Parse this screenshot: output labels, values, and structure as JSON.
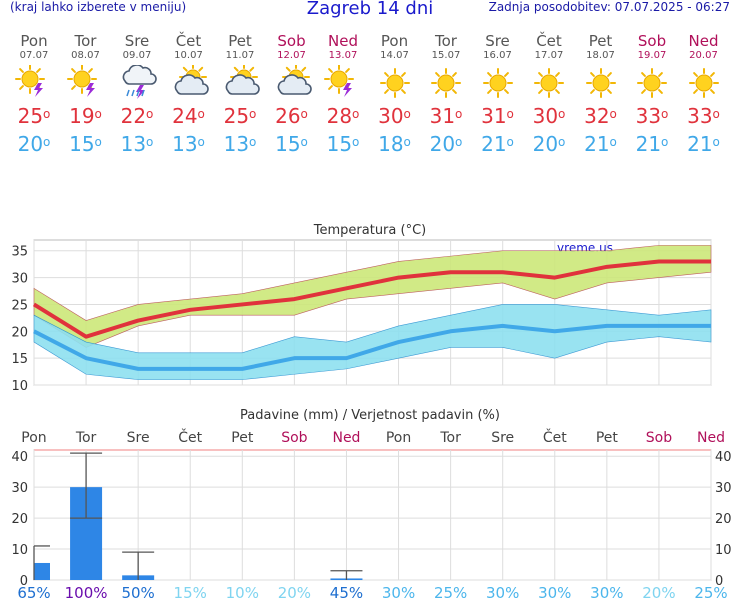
{
  "header": {
    "menu_hint": "(kraj lahko izberete v meniju)",
    "title": "Zagreb 14 dni",
    "updated": "Zadnja posodobitev: 07.07.2025 - 06:27"
  },
  "days": [
    {
      "name": "Pon",
      "date": "07.07",
      "icon": "sun-cloud-storm-icon",
      "max": "25",
      "min": "20",
      "weekend": false
    },
    {
      "name": "Tor",
      "date": "08.07",
      "icon": "sun-cloud-storm-icon",
      "max": "19",
      "min": "15",
      "weekend": false
    },
    {
      "name": "Sre",
      "date": "09.07",
      "icon": "cloud-storm-rain-icon",
      "max": "22",
      "min": "13",
      "weekend": false
    },
    {
      "name": "Čet",
      "date": "10.07",
      "icon": "sun-cloud-icon",
      "max": "24",
      "min": "13",
      "weekend": false
    },
    {
      "name": "Pet",
      "date": "11.07",
      "icon": "sun-cloud-icon",
      "max": "25",
      "min": "13",
      "weekend": false
    },
    {
      "name": "Sob",
      "date": "12.07",
      "icon": "sun-cloud-icon",
      "max": "26",
      "min": "15",
      "weekend": true
    },
    {
      "name": "Ned",
      "date": "13.07",
      "icon": "sun-cloud-storm-icon",
      "max": "28",
      "min": "15",
      "weekend": true
    },
    {
      "name": "Pon",
      "date": "14.07",
      "icon": "sun-icon",
      "max": "30",
      "min": "18",
      "weekend": false
    },
    {
      "name": "Tor",
      "date": "15.07",
      "icon": "sun-icon",
      "max": "31",
      "min": "20",
      "weekend": false
    },
    {
      "name": "Sre",
      "date": "16.07",
      "icon": "sun-icon",
      "max": "31",
      "min": "21",
      "weekend": false
    },
    {
      "name": "Čet",
      "date": "17.07",
      "icon": "sun-icon",
      "max": "30",
      "min": "20",
      "weekend": false
    },
    {
      "name": "Pet",
      "date": "18.07",
      "icon": "sun-icon",
      "max": "32",
      "min": "21",
      "weekend": false
    },
    {
      "name": "Sob",
      "date": "19.07",
      "icon": "sun-icon",
      "max": "33",
      "min": "21",
      "weekend": true
    },
    {
      "name": "Ned",
      "date": "20.07",
      "icon": "sun-icon",
      "max": "33",
      "min": "21",
      "weekend": true
    }
  ],
  "colors": {
    "max": "#e0323c",
    "min": "#40a8e8",
    "max_band": "#cde87a",
    "min_band": "#8ee0f0",
    "rain_bar": "#2e86e6",
    "weekend": "#b0105a"
  },
  "chart_data": [
    {
      "type": "line",
      "title": "Temperatura (°C)",
      "watermark": "vreme.us",
      "categories": [
        "Pon",
        "Tor",
        "Sre",
        "Čet",
        "Pet",
        "Sob",
        "Ned",
        "Pon",
        "Tor",
        "Sre",
        "Čet",
        "Pet",
        "Sob",
        "Ned"
      ],
      "ylim": [
        10,
        37
      ],
      "yticks": [
        10,
        15,
        20,
        25,
        30,
        35
      ],
      "grid": true,
      "series": [
        {
          "role": "max",
          "values": [
            25,
            19,
            22,
            24,
            25,
            26,
            28,
            30,
            31,
            31,
            30,
            32,
            33,
            33
          ],
          "band_low": [
            23,
            17,
            21,
            23,
            23,
            23,
            26,
            27,
            28,
            29,
            26,
            29,
            30,
            31
          ],
          "band_high": [
            28,
            22,
            25,
            26,
            27,
            29,
            31,
            33,
            34,
            35,
            35,
            35,
            36,
            36
          ]
        },
        {
          "role": "min",
          "values": [
            20,
            15,
            13,
            13,
            13,
            15,
            15,
            18,
            20,
            21,
            20,
            21,
            21,
            21
          ],
          "band_low": [
            18,
            12,
            11,
            11,
            11,
            12,
            13,
            15,
            17,
            17,
            15,
            18,
            19,
            18
          ],
          "band_high": [
            23,
            18,
            16,
            16,
            16,
            19,
            18,
            21,
            23,
            25,
            25,
            24,
            23,
            24
          ]
        }
      ]
    },
    {
      "type": "bar",
      "title": "Padavine (mm) / Verjetnost padavin (%)",
      "categories": [
        "Pon",
        "Tor",
        "Sre",
        "Čet",
        "Pet",
        "Sob",
        "Ned",
        "Pon",
        "Tor",
        "Sre",
        "Čet",
        "Pet",
        "Sob",
        "Ned"
      ],
      "ylim": [
        0,
        42
      ],
      "yticks": [
        0,
        10,
        20,
        30,
        40
      ],
      "values": [
        5.5,
        30,
        1.5,
        0,
        0,
        0,
        0.5,
        0,
        0,
        0,
        0,
        0,
        0,
        0
      ],
      "ranges": [
        [
          0,
          11
        ],
        [
          20,
          41
        ],
        [
          0,
          9
        ],
        null,
        null,
        null,
        [
          0,
          3
        ],
        null,
        null,
        null,
        null,
        null,
        null,
        null
      ],
      "probabilities": [
        "65%",
        "100%",
        "50%",
        "15%",
        "10%",
        "20%",
        "45%",
        "30%",
        "25%",
        "30%",
        "30%",
        "30%",
        "20%",
        "25%"
      ],
      "probability_colors": [
        "#1e6fd0",
        "#6a0dad",
        "#1e6fd0",
        "#7fd4f0",
        "#7fd4f0",
        "#7fd4f0",
        "#1e6fd0",
        "#4cb6ec",
        "#4cb6ec",
        "#4cb6ec",
        "#4cb6ec",
        "#4cb6ec",
        "#7fd4f0",
        "#4cb6ec"
      ]
    }
  ]
}
